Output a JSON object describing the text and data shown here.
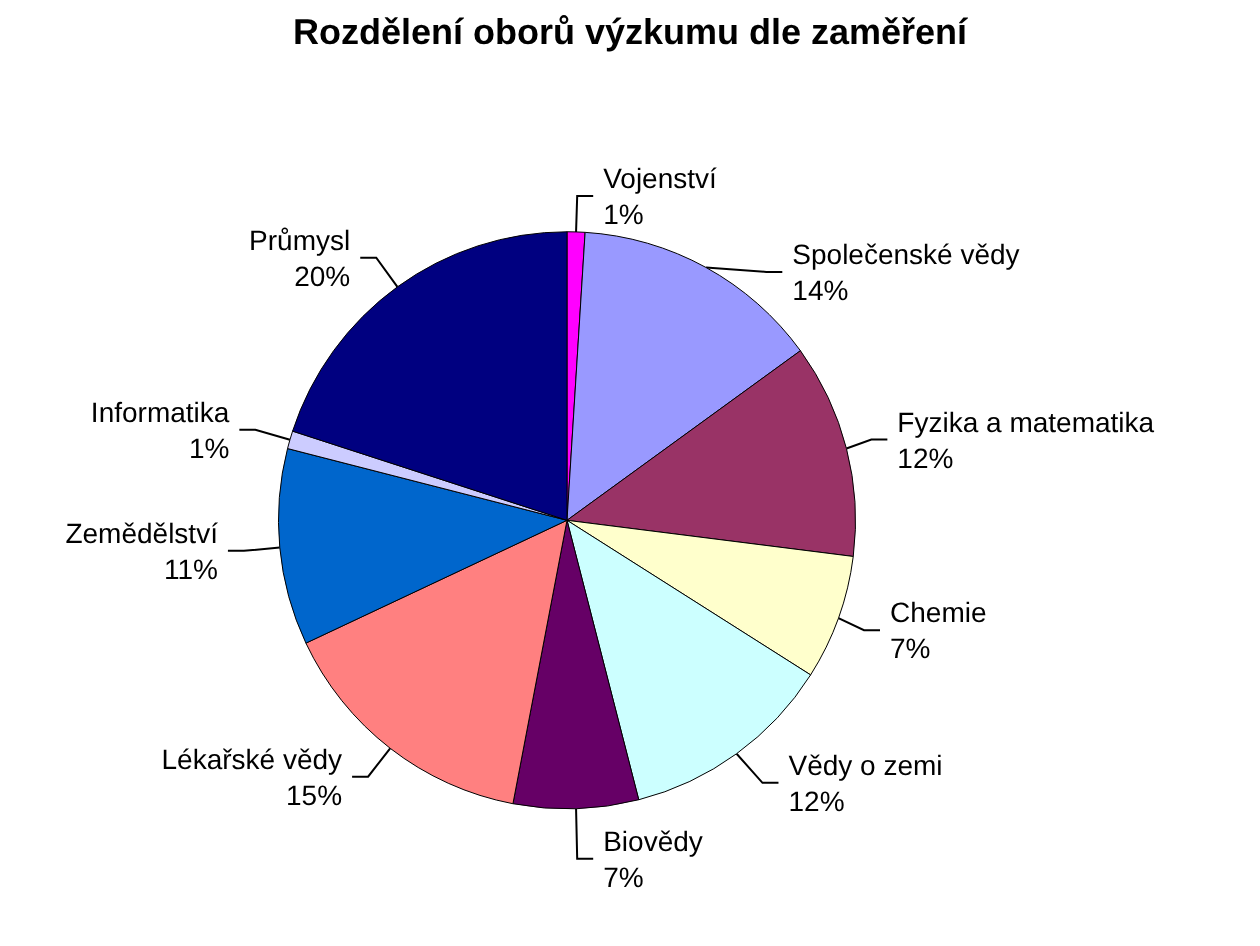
{
  "chart_data": {
    "type": "pie",
    "title": "Rozdělení oborů výzkumu dle zaměření",
    "categories": [
      "Vojenství",
      "Společenské vědy",
      "Fyzika a matematika",
      "Chemie",
      "Vědy o zemi",
      "Biovědy",
      "Lékařské vědy",
      "Zemědělství",
      "Informatika",
      "Průmysl"
    ],
    "values": [
      1,
      14,
      12,
      7,
      12,
      7,
      15,
      11,
      1,
      20
    ],
    "colors": [
      "#ff00ff",
      "#9999ff",
      "#993366",
      "#ffffcc",
      "#ccffff",
      "#660066",
      "#ff8080",
      "#0066cc",
      "#ccccff",
      "#000080"
    ],
    "value_labels": [
      "1%",
      "14%",
      "12%",
      "7%",
      "12%",
      "7%",
      "15%",
      "11%",
      "1%",
      "20%"
    ],
    "legend": false
  }
}
